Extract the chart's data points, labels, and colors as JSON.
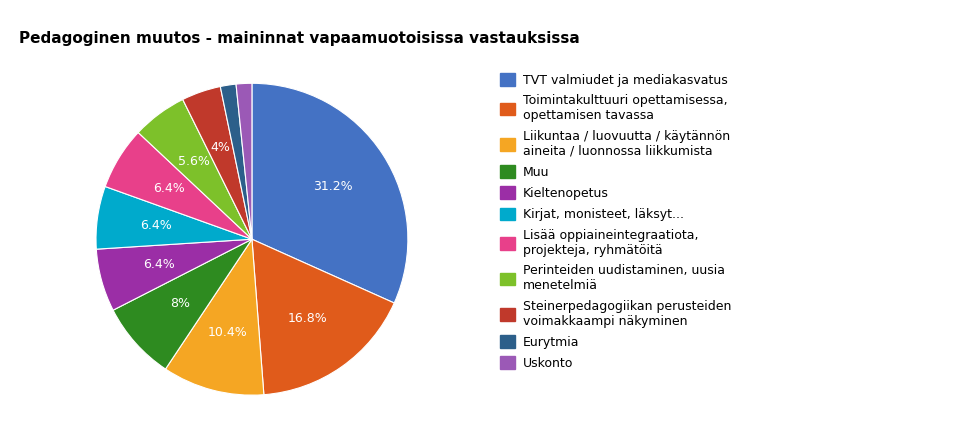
{
  "title": "Pedagoginen muutos - maininnat vapaamuotoisissa vastauksissa",
  "labels": [
    "TVT valmiudet ja mediakasvatus",
    "Toimintakulttuuri opettamisessa,\nopettamisen tavassa",
    "Liikuntaa / luovuutta / käytännön\naineita / luonnossa liikkumista",
    "Muu",
    "Kieltenopetus",
    "Kirjat, monisteet, läksyt...",
    "Lisää oppiaineintegraatiota,\nprojekteja, ryhmätöitä",
    "Perinteiden uudistaminen, uusia\nmenetelmiä",
    "Steinerpedagogiikan perusteiden\nvoimakkaampi näkyminen",
    "Eurytmia",
    "Uskonto"
  ],
  "values": [
    31.2,
    16.8,
    10.4,
    8.0,
    6.4,
    6.4,
    6.4,
    5.6,
    4.0,
    1.6,
    1.6
  ],
  "colors": [
    "#4472C4",
    "#E05B1B",
    "#F5A623",
    "#2E8B20",
    "#9B2EA6",
    "#00AACC",
    "#E8408A",
    "#7DC12A",
    "#C0392B",
    "#2C5F8A",
    "#9B59B6"
  ],
  "pct_labels": [
    "31.2%",
    "16.8%",
    "10.4%",
    "8%",
    "6.4%",
    "6.4%",
    "6.4%",
    "5.6%",
    "4%",
    "",
    ""
  ],
  "figsize": [
    9.69,
    4.43
  ],
  "dpi": 100
}
